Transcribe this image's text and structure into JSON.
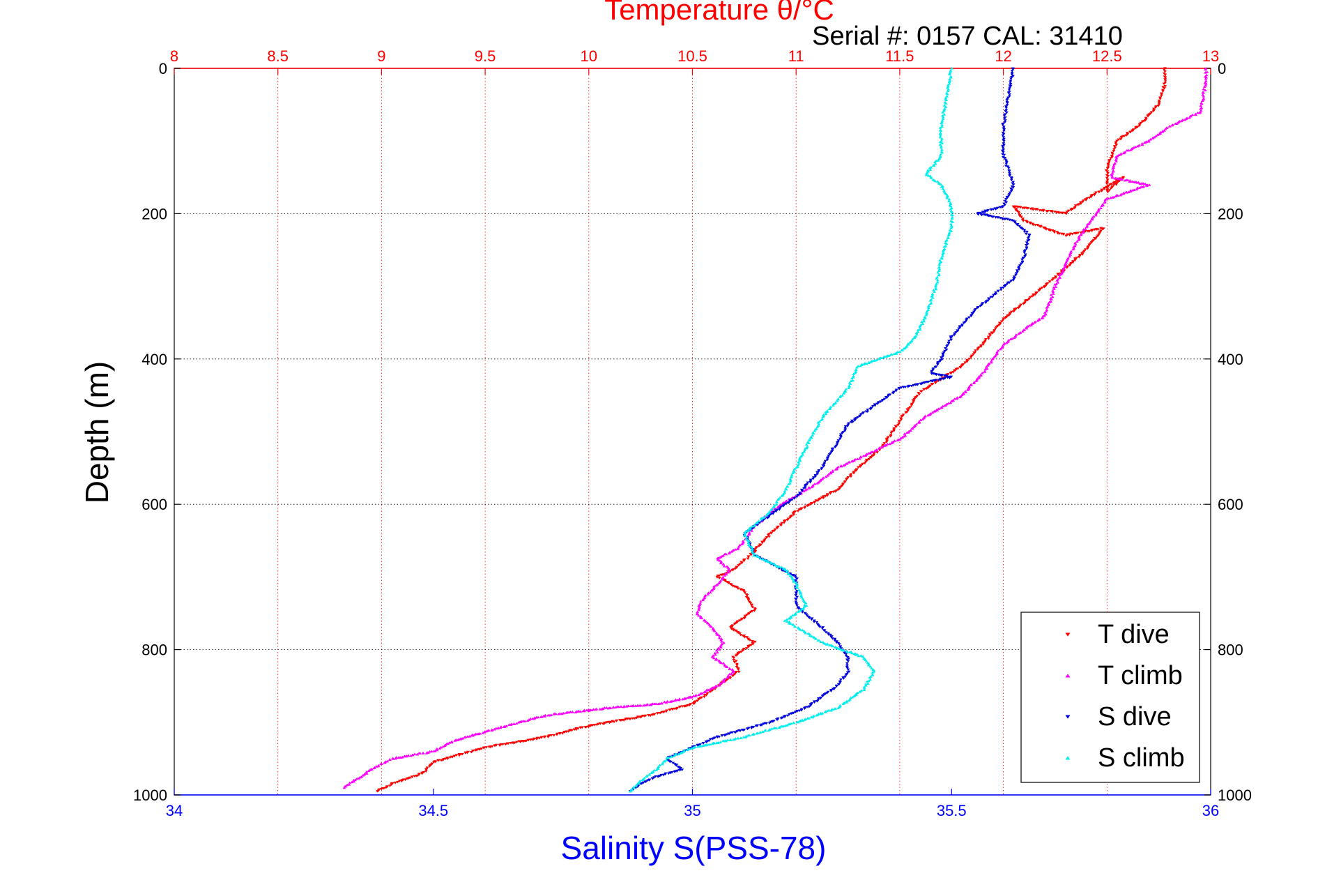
{
  "chart_data": {
    "type": "scatter",
    "title": "Temperature θ/°C",
    "subtitle": "Serial #: 0157  CAL: 31410",
    "xlabel": "Salinity S(PSS-78)",
    "ylabel": "Depth (m)",
    "x_bottom": {
      "label": "Salinity S(PSS-78)",
      "lim": [
        34,
        36
      ],
      "ticks": [
        "34",
        "34.5",
        "35",
        "35.5",
        "36"
      ],
      "color": "#0000ff"
    },
    "x_top": {
      "label": "Temperature θ/°C",
      "lim": [
        8,
        13
      ],
      "ticks": [
        "8",
        "8.5",
        "9",
        "9.5",
        "10",
        "10.5",
        "11",
        "11.5",
        "12",
        "12.5",
        "13"
      ],
      "color": "#ff0000"
    },
    "y": {
      "lim": [
        0,
        1000
      ],
      "reversed": true,
      "ticks": [
        "0",
        "200",
        "400",
        "600",
        "800",
        "1000"
      ]
    },
    "grid": true,
    "legend_position": "bottom-right",
    "series": [
      {
        "name": "T dive",
        "axis": "temperature",
        "color": "#ff0000",
        "marker": "triangle-down",
        "x": [
          12.78,
          12.78,
          12.75,
          12.65,
          12.55,
          12.5,
          12.5,
          12.58,
          12.4,
          12.3,
          12.05,
          12.1,
          12.3,
          12.48,
          12.4,
          12.3,
          12.2,
          12.0,
          11.9,
          11.8,
          11.6,
          11.5,
          11.42,
          11.3,
          11.2,
          11.0,
          10.88,
          10.78,
          10.7,
          10.62,
          10.75,
          10.8,
          10.68,
          10.8,
          10.7,
          10.72,
          10.6,
          10.5,
          10.3,
          10.0,
          9.8,
          9.5,
          9.25,
          9.2,
          9.05,
          8.98
        ],
        "y": [
          0,
          20,
          50,
          80,
          100,
          140,
          170,
          150,
          180,
          200,
          190,
          210,
          230,
          220,
          250,
          275,
          300,
          345,
          380,
          410,
          445,
          485,
          520,
          550,
          580,
          610,
          640,
          670,
          690,
          700,
          720,
          745,
          770,
          790,
          810,
          830,
          855,
          875,
          890,
          905,
          920,
          935,
          955,
          970,
          985,
          995
        ]
      },
      {
        "name": "T climb",
        "axis": "temperature",
        "color": "#ff00ff",
        "marker": "triangle-up",
        "x": [
          12.98,
          12.97,
          12.95,
          12.8,
          12.7,
          12.55,
          12.52,
          12.7,
          12.5,
          12.42,
          12.35,
          12.3,
          12.25,
          12.2,
          12.0,
          11.9,
          11.8,
          11.62,
          11.5,
          11.35,
          11.2,
          11.08,
          10.9,
          10.8,
          10.72,
          10.62,
          10.68,
          10.62,
          10.55,
          10.52,
          10.6,
          10.65,
          10.6,
          10.7,
          10.62,
          10.5,
          10.32,
          10.1,
          9.8,
          9.6,
          9.35,
          9.25,
          9.05,
          8.95,
          8.82
        ],
        "y": [
          0,
          30,
          60,
          80,
          100,
          120,
          150,
          160,
          180,
          210,
          240,
          270,
          300,
          340,
          380,
          420,
          450,
          480,
          510,
          530,
          550,
          575,
          605,
          630,
          660,
          675,
          690,
          710,
          730,
          750,
          770,
          790,
          810,
          830,
          850,
          865,
          875,
          880,
          890,
          905,
          925,
          940,
          950,
          965,
          990
        ]
      },
      {
        "name": "S dive",
        "axis": "salinity",
        "color": "#0000dd",
        "marker": "triangle-down",
        "x": [
          35.62,
          35.61,
          35.6,
          35.6,
          35.62,
          35.6,
          35.55,
          35.62,
          35.65,
          35.64,
          35.62,
          35.55,
          35.5,
          35.48,
          35.46,
          35.5,
          35.4,
          35.3,
          35.25,
          35.2,
          35.15,
          35.1,
          35.12,
          35.2,
          35.2,
          35.25,
          35.28,
          35.3,
          35.3,
          35.28,
          35.22,
          35.15,
          35.05,
          35.0,
          34.95,
          34.98,
          34.93,
          34.9,
          34.88
        ],
        "y": [
          0,
          40,
          80,
          120,
          160,
          190,
          200,
          210,
          230,
          260,
          290,
          330,
          370,
          400,
          420,
          425,
          440,
          490,
          550,
          590,
          615,
          640,
          670,
          700,
          740,
          770,
          790,
          810,
          830,
          850,
          880,
          900,
          920,
          935,
          950,
          965,
          975,
          985,
          995
        ]
      },
      {
        "name": "S climb",
        "axis": "salinity",
        "color": "#00eeee",
        "marker": "triangle-up",
        "x": [
          35.5,
          35.49,
          35.48,
          35.48,
          35.45,
          35.48,
          35.5,
          35.5,
          35.48,
          35.47,
          35.45,
          35.43,
          35.4,
          35.32,
          35.3,
          35.25,
          35.22,
          35.2,
          35.18,
          35.15,
          35.1,
          35.12,
          35.18,
          35.2,
          35.22,
          35.18,
          35.25,
          35.33,
          35.35,
          35.33,
          35.28,
          35.2,
          35.1,
          35.0,
          34.95,
          34.93,
          34.9,
          34.88
        ],
        "y": [
          0,
          40,
          80,
          120,
          145,
          160,
          190,
          220,
          260,
          300,
          340,
          370,
          390,
          410,
          440,
          480,
          520,
          550,
          580,
          610,
          640,
          670,
          690,
          710,
          740,
          760,
          790,
          810,
          830,
          855,
          880,
          900,
          920,
          935,
          950,
          965,
          980,
          995
        ]
      }
    ]
  }
}
